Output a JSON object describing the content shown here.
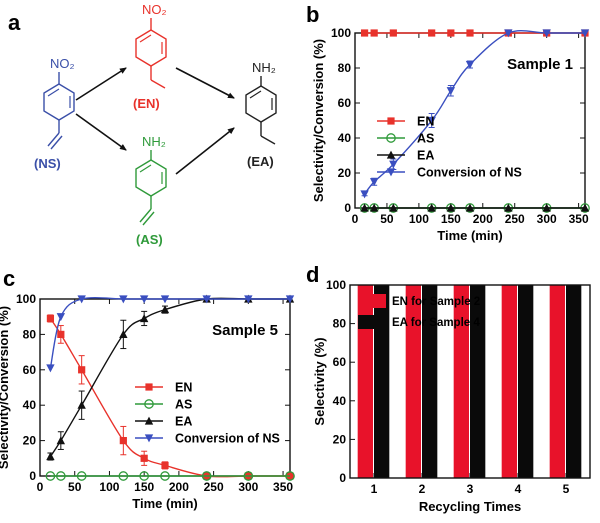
{
  "panels": {
    "a": {
      "letter": "a",
      "compounds": {
        "NS": {
          "label": "(NS)",
          "group": "NO₂",
          "color": "#3a4fa8"
        },
        "EN": {
          "label": "(EN)",
          "group": "NO₂",
          "color": "#e8322b"
        },
        "AS": {
          "label": "(AS)",
          "group": "NH₂",
          "color": "#2f9a3a"
        },
        "EA": {
          "label": "(EA)",
          "group": "NH₂",
          "color": "#222222"
        }
      }
    },
    "b": {
      "letter": "b"
    },
    "c": {
      "letter": "c"
    },
    "d": {
      "letter": "d"
    }
  },
  "chart_data": [
    {
      "panel": "b",
      "type": "line",
      "annotation": "Sample 1",
      "xlabel": "Time (min)",
      "ylabel": "Selectivity/Conversion (%)",
      "xlim": [
        0,
        360
      ],
      "ylim": [
        0,
        100
      ],
      "xticks": [
        0,
        50,
        100,
        150,
        200,
        250,
        300,
        350
      ],
      "yticks": [
        0,
        20,
        40,
        60,
        80,
        100
      ],
      "legend_position": "middle-right",
      "series": [
        {
          "name": "EN",
          "color": "#e8322b",
          "marker": "square",
          "x": [
            15,
            30,
            60,
            120,
            150,
            180,
            240,
            300,
            360
          ],
          "y": [
            100,
            100,
            100,
            100,
            100,
            100,
            100,
            100,
            100
          ]
        },
        {
          "name": "AS",
          "color": "#2f9a3a",
          "marker": "circle-open",
          "x": [
            15,
            30,
            60,
            120,
            150,
            180,
            240,
            300,
            360
          ],
          "y": [
            0,
            0,
            0,
            0,
            0,
            0,
            0,
            0,
            0
          ]
        },
        {
          "name": "EA",
          "color": "#111111",
          "marker": "triangle-up",
          "x": [
            15,
            30,
            60,
            120,
            150,
            180,
            240,
            300,
            360
          ],
          "y": [
            0,
            0,
            0,
            0,
            0,
            0,
            0,
            0,
            0
          ]
        },
        {
          "name": "Conversion of NS",
          "color": "#3a4fc0",
          "marker": "triangle-down",
          "x": [
            15,
            30,
            60,
            120,
            150,
            180,
            240,
            300,
            360
          ],
          "y": [
            8,
            15,
            25,
            50,
            67,
            82,
            100,
            100,
            100
          ],
          "err": [
            1,
            2,
            3,
            4,
            3,
            2,
            0,
            0,
            0
          ]
        }
      ]
    },
    {
      "panel": "c",
      "type": "line",
      "annotation": "Sample 5",
      "xlabel": "Time (min)",
      "ylabel": "Selectivity/Conversion (%)",
      "xlim": [
        0,
        360
      ],
      "ylim": [
        0,
        100
      ],
      "xticks": [
        0,
        50,
        100,
        150,
        200,
        250,
        300,
        350
      ],
      "yticks": [
        0,
        20,
        40,
        60,
        80,
        100
      ],
      "legend_position": "middle-right",
      "series": [
        {
          "name": "EN",
          "color": "#e8322b",
          "marker": "square",
          "x": [
            15,
            30,
            60,
            120,
            150,
            180,
            240,
            300,
            360
          ],
          "y": [
            89,
            80,
            60,
            20,
            10,
            6,
            0,
            0,
            0
          ],
          "err": [
            2,
            5,
            8,
            8,
            4,
            2,
            0,
            0,
            0
          ]
        },
        {
          "name": "AS",
          "color": "#2f9a3a",
          "marker": "circle-open",
          "x": [
            15,
            30,
            60,
            120,
            150,
            180,
            240,
            300,
            360
          ],
          "y": [
            0,
            0,
            0,
            0,
            0,
            0,
            0,
            0,
            0
          ]
        },
        {
          "name": "EA",
          "color": "#111111",
          "marker": "triangle-up",
          "x": [
            15,
            30,
            60,
            120,
            150,
            180,
            240,
            300,
            360
          ],
          "y": [
            11,
            20,
            40,
            80,
            89,
            94,
            100,
            100,
            100
          ],
          "err": [
            2,
            5,
            8,
            8,
            4,
            2,
            0,
            0,
            0
          ]
        },
        {
          "name": "Conversion of NS",
          "color": "#3a4fc0",
          "marker": "triangle-down",
          "x": [
            15,
            30,
            60,
            120,
            150,
            180,
            240,
            300,
            360
          ],
          "y": [
            61,
            90,
            100,
            100,
            100,
            100,
            100,
            100,
            100
          ]
        }
      ]
    },
    {
      "panel": "d",
      "type": "bar",
      "xlabel": "Recycling Times",
      "ylabel": "Selectivity (%)",
      "categories": [
        "1",
        "2",
        "3",
        "4",
        "5"
      ],
      "ylim": [
        0,
        100
      ],
      "yticks": [
        0,
        20,
        40,
        60,
        80,
        100
      ],
      "legend_position": "top-left",
      "series": [
        {
          "name": "EN for Sample 2",
          "color": "#e8122a",
          "values": [
            100,
            100,
            100,
            100,
            100
          ]
        },
        {
          "name": "EA for Sample 4",
          "color": "#0a0a0a",
          "values": [
            100,
            100,
            100,
            100,
            100
          ]
        }
      ]
    }
  ]
}
